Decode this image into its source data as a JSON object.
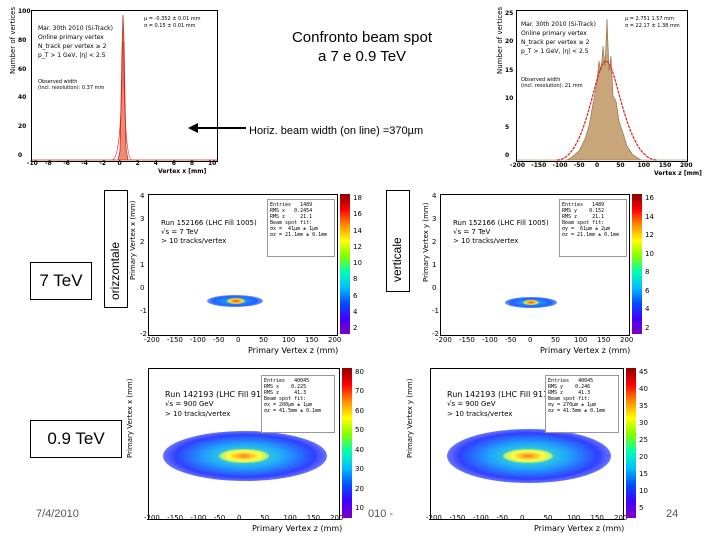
{
  "slide": {
    "title_line1": "Confronto beam spot",
    "title_line2": "a 7 e 0.9 TeV",
    "label_7tev": "7 TeV",
    "label_09tev": "0.9 TeV",
    "label_orizzontale": "orizzontale",
    "label_verticale": "verticale",
    "annotation": "Horiz. beam width (on line) =370µm",
    "date": "7/4/2010",
    "footer_mid": "010 -",
    "page_number": "24"
  },
  "hist_x": {
    "ylabel": "Number of vertices",
    "xlabel": "Vertex x [mm]",
    "stat_line1": "µ = -0.352 ± 0.01 mm",
    "stat_line2": "σ = 0.15 ± 0.01 mm",
    "info_line1": "Mar. 30th 2010 (Si-Track)",
    "info_line2": "Online primary vertex",
    "info_line3": "N_track per vertex ≥ 2",
    "info_line4": "p_T > 1 GeV, |η| < 2.5",
    "note_line1": "Observed width",
    "note_line2": "(incl. resolution): 0.37 mm",
    "xticks": [
      "-10",
      "-8",
      "-6",
      "-4",
      "-2",
      "0",
      "2",
      "4",
      "6",
      "8",
      "10"
    ],
    "yticks": [
      "100",
      "80",
      "60",
      "40",
      "20",
      "0"
    ]
  },
  "hist_y": {
    "ylabel": "Number of vertices",
    "xlabel": "Vertex z [mm]",
    "stat_line1": "µ = 2.751 1.57 mm",
    "stat_line2": "σ = 22.17 ± 1.38 mm",
    "info_line1": "Mar. 30th 2010 (Si-Track)",
    "info_line2": "Online primary vertex",
    "info_line3": "N_track per vertex ≥ 2",
    "info_line4": "p_T > 1 GeV, |η| < 2.5",
    "note_line1": "Observed width",
    "note_line2": "(incl. resolution): 21 mm",
    "xticks": [
      "-200",
      "-150",
      "-100",
      "-50",
      "0",
      "50",
      "100",
      "150",
      "200"
    ],
    "yticks": [
      "25",
      "20",
      "15",
      "10",
      "5",
      "0"
    ]
  },
  "map_7_x": {
    "ylabel": "Primary Vertex x (mm)",
    "xlabel": "Primary Vertex z (mm)",
    "run": "Run 152166 (LHC Fill 1005)",
    "energy": "√s = 7 TeV",
    "cut": "> 10 tracks/vertex",
    "stats": "Entries   1489\nRMS x   0.2454\nRMS z     21.1\nBeam spot fit:\nσx =  41µm ± 1µm\nσz = 21.1mm ± 0.1mm",
    "yticks": [
      "4",
      "3",
      "2",
      "1",
      "0",
      "-1",
      "-2"
    ],
    "xticks": [
      "-200",
      "-150",
      "-100",
      "-50",
      "0",
      "50",
      "100",
      "150",
      "200"
    ],
    "palette": [
      "18",
      "16",
      "14",
      "12",
      "10",
      "8",
      "6",
      "4",
      "2"
    ]
  },
  "map_7_y": {
    "ylabel": "Primary Vertex y (mm)",
    "xlabel": "Primary Vertex z (mm)",
    "run": "Run 152166 (LHC Fill 1005)",
    "energy": "√s = 7 TeV",
    "cut": "> 10 tracks/vertex",
    "stats": "Entries   1489\nRMS y    0.152\nRMS z     21.1\nBeam spot fit:\nσy =  61µm ± 2µm\nσz = 21.1mm ± 0.1mm",
    "yticks": [
      "4",
      "3",
      "2",
      "1",
      "0",
      "-1",
      "-2"
    ],
    "xticks": [
      "-200",
      "-150",
      "-100",
      "-50",
      "0",
      "50",
      "100",
      "150",
      "200"
    ],
    "palette": [
      "16",
      "14",
      "12",
      "10",
      "8",
      "6",
      "4",
      "2"
    ]
  },
  "map_09_x": {
    "ylabel": "Primary Vertex x (mm)",
    "xlabel": "Primary Vertex z (mm)",
    "run": "Run 142193 (LHC Fill 911)",
    "energy": "√s = 900 GeV",
    "cut": "> 10 tracks/vertex",
    "stats": "Entries   40045\nRMS x    0.225\nRMS z     41.3\nBeam spot fit:\nσx = 200µm ± 1µm\nσz = 41.5mm ± 0.1mm",
    "xticks": [
      "-200",
      "-150",
      "-100",
      "-50",
      "0",
      "50",
      "100",
      "150",
      "200"
    ],
    "palette": [
      "80",
      "70",
      "60",
      "50",
      "40",
      "30",
      "20",
      "10"
    ]
  },
  "map_09_y": {
    "ylabel": "Primary Vertex y (mm)",
    "xlabel": "Primary Vertex z (mm)",
    "run": "Run 142193 (LHC Fill 911)",
    "energy": "√s = 900 GeV",
    "cut": "> 10 tracks/vertex",
    "stats": "Entries   40045\nRMS y    0.246\nRMS z     41.3\nBeam spot fit:\nσy = 270µm ± 1µm\nσz = 41.5mm ± 0.1mm",
    "xticks": [
      "-200",
      "-150",
      "-100",
      "-50",
      "0",
      "50",
      "100",
      "150",
      "200"
    ],
    "palette": [
      "45",
      "40",
      "35",
      "30",
      "25",
      "20",
      "15",
      "10",
      "5"
    ]
  },
  "colors": {
    "hist_fill_x": "#f08a70",
    "hist_fill_y": "#c9a57a",
    "fit_curve": "#e02020",
    "arrow": "#000000"
  }
}
